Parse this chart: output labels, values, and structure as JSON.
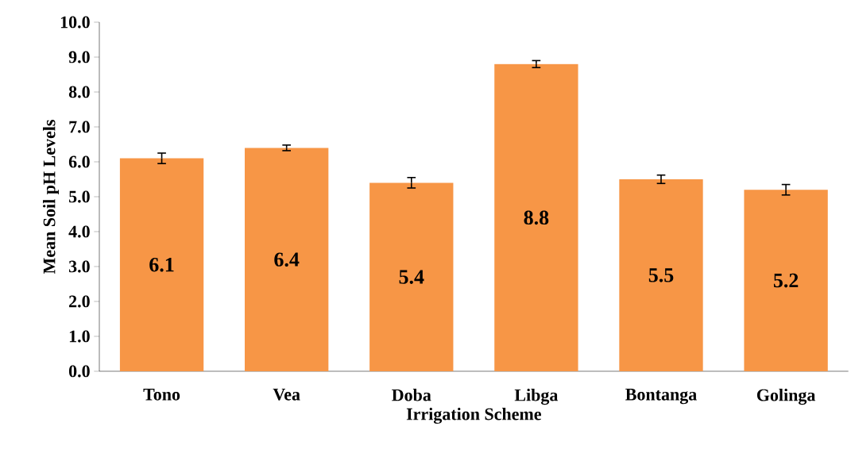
{
  "chart_data": {
    "type": "bar",
    "xlabel": "Irrigation Scheme",
    "ylabel": "Mean Soil pH Levels",
    "categories": [
      "Tono",
      "Vea",
      "Doba",
      "Libga",
      "Bontanga",
      "Golinga"
    ],
    "values": [
      6.1,
      6.4,
      5.4,
      8.8,
      5.5,
      5.2
    ],
    "errors": [
      0.15,
      0.08,
      0.15,
      0.1,
      0.12,
      0.15
    ],
    "color": "#f79646",
    "data_labels": true,
    "grid": false,
    "ylim": [
      0,
      10
    ],
    "yticks": [
      {
        "value": 0,
        "label": "0.0"
      },
      {
        "value": 1,
        "label": "1.0"
      },
      {
        "value": 2,
        "label": "2.0"
      },
      {
        "value": 3,
        "label": "3.0"
      },
      {
        "value": 4,
        "label": "4.0"
      },
      {
        "value": 5,
        "label": "5.0"
      },
      {
        "value": 6,
        "label": "6.0"
      },
      {
        "value": 7,
        "label": "7.0"
      },
      {
        "value": 8,
        "label": "8.0"
      },
      {
        "value": 9,
        "label": "9.0"
      },
      {
        "value": 10,
        "label": "10.0"
      }
    ]
  }
}
